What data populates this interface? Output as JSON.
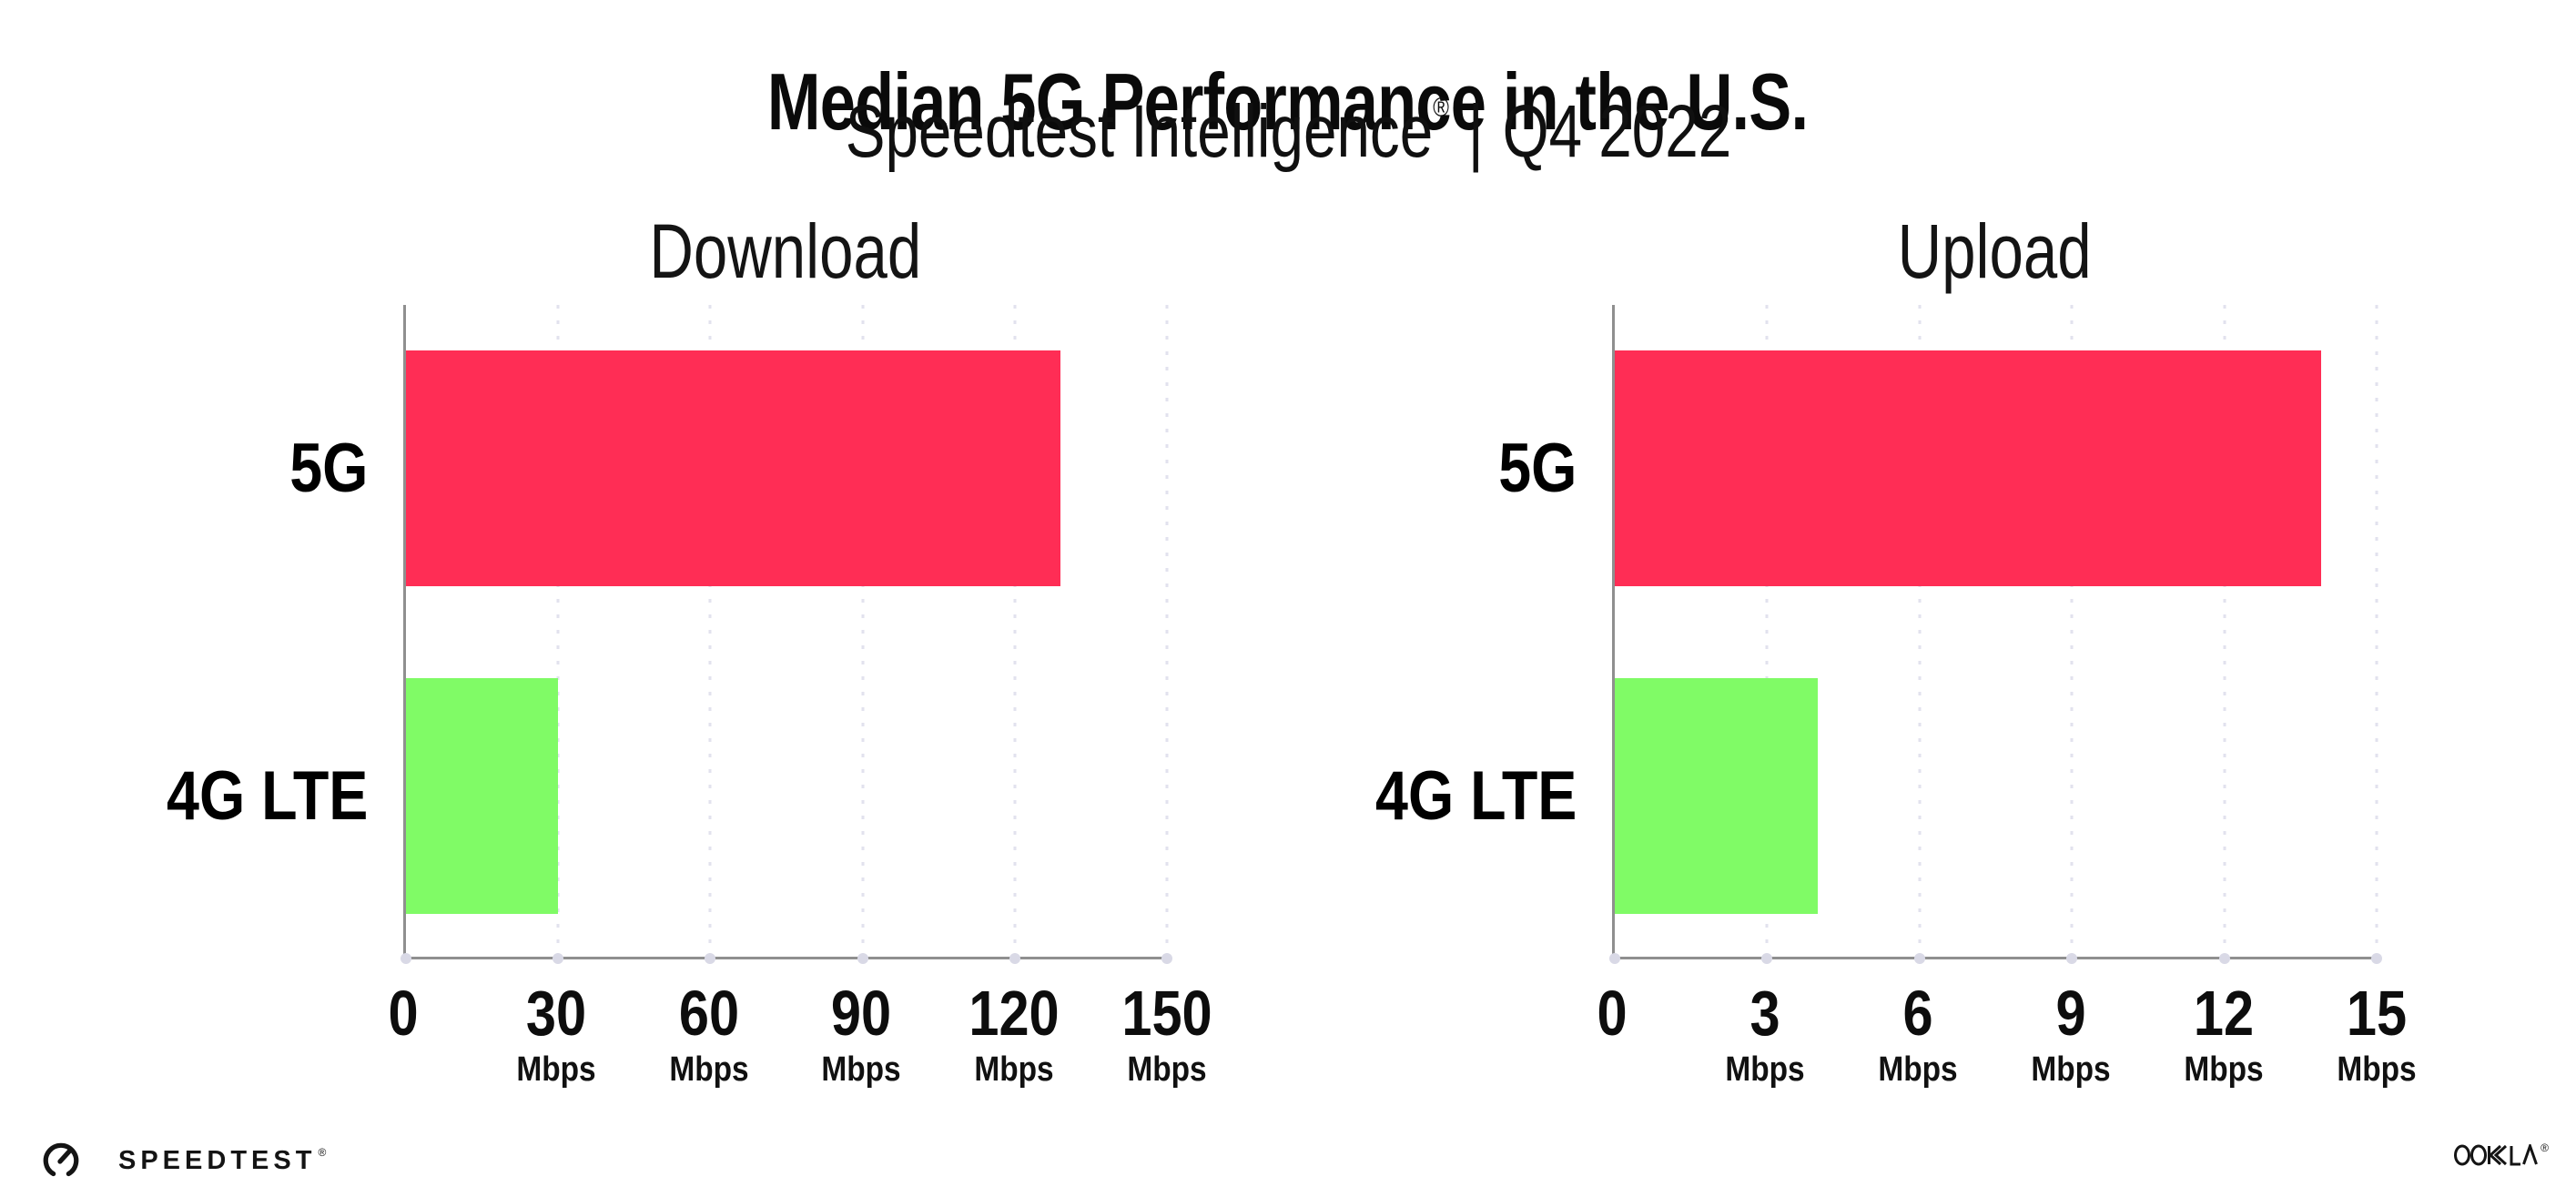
{
  "header": {
    "title": "Median 5G Performance in the U.S.",
    "subtitle_brand": "Speedtest Intelligence",
    "subtitle_reg": "®",
    "subtitle_divider": "|",
    "subtitle_period": "Q4 2022"
  },
  "footer": {
    "speedtest_label": "SPEEDTEST",
    "speedtest_reg": "®",
    "ookla_label": "OOKLA",
    "ookla_reg": "®"
  },
  "colors": {
    "bar_5g": "#FF2D55",
    "bar_4g_lte": "#80FB66",
    "axis": "#8f8f8f",
    "gridline": "#e2e2ee",
    "text": "#0a0a0a"
  },
  "chart_data": [
    {
      "type": "bar",
      "orientation": "horizontal",
      "title": "Download",
      "categories": [
        "5G",
        "4G LTE"
      ],
      "values": [
        129,
        30
      ],
      "unit": "Mbps",
      "xlim": [
        0,
        150
      ],
      "xticks": [
        0,
        30,
        60,
        90,
        120,
        150
      ],
      "tick_unit_label": "Mbps",
      "bar_colors": [
        "#FF2D55",
        "#80FB66"
      ],
      "grid": "vertical-dotted",
      "legend": "none"
    },
    {
      "type": "bar",
      "orientation": "horizontal",
      "title": "Upload",
      "categories": [
        "5G",
        "4G LTE"
      ],
      "values": [
        13.9,
        4
      ],
      "unit": "Mbps",
      "xlim": [
        0,
        15
      ],
      "xticks": [
        0,
        3,
        6,
        9,
        12,
        15
      ],
      "tick_unit_label": "Mbps",
      "bar_colors": [
        "#FF2D55",
        "#80FB66"
      ],
      "grid": "vertical-dotted",
      "legend": "none"
    }
  ]
}
